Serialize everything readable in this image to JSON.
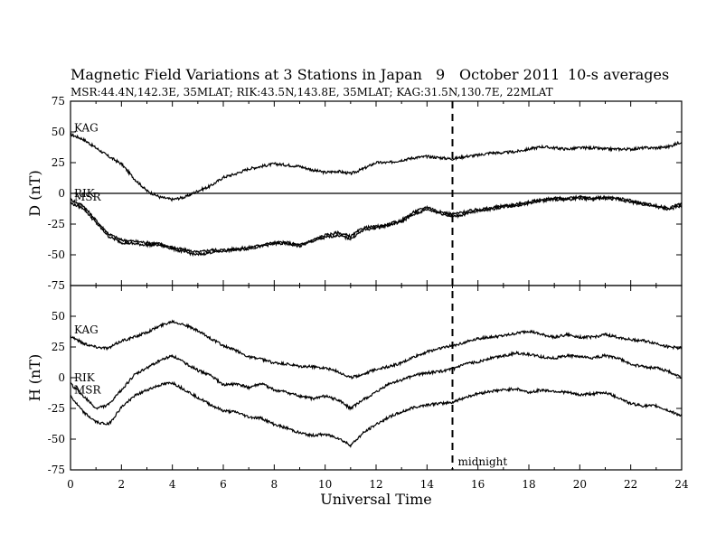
{
  "header": {
    "title": "Magnetic Field Variations at 3 Stations in Japan",
    "date_day": "9",
    "date_month_year": "October 2011",
    "averaging": "10-s averages",
    "stations_line": "MSR:44.4N,142.3E, 35MLAT;  RIK:43.5N,143.8E, 35MLAT;  KAG:31.5N,130.7E, 22MLAT"
  },
  "chart_data": [
    {
      "type": "line",
      "panel": "top",
      "ylabel": "D (nT)",
      "ylim": [
        -75,
        75
      ],
      "yticks": [
        75,
        50,
        25,
        0,
        -25,
        -50,
        -75
      ],
      "xlim": [
        0,
        24
      ],
      "zero_line": true,
      "series": [
        {
          "name": "KAG",
          "x": [
            0,
            0.5,
            1,
            1.5,
            2,
            2.5,
            3,
            3.5,
            4,
            4.5,
            5,
            5.5,
            6,
            6.5,
            7,
            7.5,
            8,
            8.5,
            9,
            9.5,
            10,
            10.5,
            11,
            11.5,
            12,
            12.5,
            13,
            13.5,
            14,
            14.5,
            15,
            15.5,
            16,
            16.5,
            17,
            17.5,
            18,
            18.5,
            19,
            19.5,
            20,
            20.5,
            21,
            21.5,
            22,
            22.5,
            23,
            23.5,
            24
          ],
          "y": [
            48,
            44,
            37,
            30,
            24,
            12,
            2,
            -3,
            -5,
            -3,
            2,
            6,
            13,
            16,
            20,
            22,
            24,
            23,
            22,
            19,
            17,
            18,
            16,
            20,
            25,
            25,
            27,
            29,
            30,
            29,
            28,
            30,
            31,
            33,
            33,
            34,
            36,
            38,
            37,
            36,
            37,
            37,
            36,
            36,
            36,
            37,
            37,
            38,
            42
          ]
        },
        {
          "name": "RIK",
          "x": [
            0,
            0.5,
            1,
            1.5,
            2,
            2.5,
            3,
            3.5,
            4,
            4.5,
            5,
            5.5,
            6,
            6.5,
            7,
            7.5,
            8,
            8.5,
            9,
            9.5,
            10,
            10.5,
            11,
            11.5,
            12,
            12.5,
            13,
            13.5,
            14,
            14.5,
            15,
            15.5,
            16,
            16.5,
            17,
            17.5,
            18,
            18.5,
            19,
            19.5,
            20,
            20.5,
            21,
            21.5,
            22,
            22.5,
            23,
            23.5,
            24
          ],
          "y": [
            -5,
            -10,
            -22,
            -33,
            -38,
            -39,
            -40,
            -41,
            -44,
            -46,
            -48,
            -46,
            -46,
            -45,
            -44,
            -42,
            -40,
            -40,
            -42,
            -38,
            -34,
            -32,
            -35,
            -28,
            -27,
            -25,
            -22,
            -15,
            -11,
            -15,
            -17,
            -15,
            -13,
            -12,
            -10,
            -9,
            -7,
            -5,
            -4,
            -4,
            -3,
            -4,
            -3,
            -4,
            -6,
            -8,
            -10,
            -12,
            -8
          ]
        },
        {
          "name": "MSR",
          "x": [
            0,
            0.5,
            1,
            1.5,
            2,
            2.5,
            3,
            3.5,
            4,
            4.5,
            5,
            5.5,
            6,
            6.5,
            7,
            7.5,
            8,
            8.5,
            9,
            9.5,
            10,
            10.5,
            11,
            11.5,
            12,
            12.5,
            13,
            13.5,
            14,
            14.5,
            15,
            15.5,
            16,
            16.5,
            17,
            17.5,
            18,
            18.5,
            19,
            19.5,
            20,
            20.5,
            21,
            21.5,
            22,
            22.5,
            23,
            23.5,
            24
          ],
          "y": [
            -8,
            -12,
            -24,
            -35,
            -40,
            -41,
            -42,
            -42,
            -45,
            -48,
            -50,
            -48,
            -47,
            -46,
            -45,
            -43,
            -41,
            -41,
            -43,
            -39,
            -36,
            -34,
            -37,
            -30,
            -28,
            -26,
            -23,
            -17,
            -13,
            -16,
            -19,
            -17,
            -14,
            -13,
            -11,
            -10,
            -8,
            -6,
            -5,
            -5,
            -4,
            -5,
            -4,
            -5,
            -7,
            -9,
            -11,
            -13,
            -10
          ]
        }
      ]
    },
    {
      "type": "line",
      "panel": "bottom",
      "ylabel": "H (nT)",
      "ylim": [
        -75,
        75
      ],
      "yticks": [
        50,
        25,
        0,
        -25,
        -50,
        -75
      ],
      "xlim": [
        0,
        24
      ],
      "xticks": [
        0,
        2,
        4,
        6,
        8,
        10,
        12,
        14,
        16,
        18,
        20,
        22,
        24
      ],
      "xlabel": "Universal Time",
      "vline": {
        "x": 15,
        "label": "midnight"
      },
      "series": [
        {
          "name": "KAG",
          "x": [
            0,
            0.5,
            1,
            1.5,
            2,
            2.5,
            3,
            3.5,
            4,
            4.5,
            5,
            5.5,
            6,
            6.5,
            7,
            7.5,
            8,
            8.5,
            9,
            9.5,
            10,
            10.5,
            11,
            11.5,
            12,
            12.5,
            13,
            13.5,
            14,
            14.5,
            15,
            15.5,
            16,
            16.5,
            17,
            17.5,
            18,
            18.5,
            19,
            19.5,
            20,
            20.5,
            21,
            21.5,
            22,
            22.5,
            23,
            23.5,
            24
          ],
          "y": [
            34,
            28,
            25,
            24,
            30,
            33,
            37,
            42,
            46,
            43,
            38,
            32,
            26,
            22,
            17,
            15,
            12,
            11,
            9,
            9,
            8,
            5,
            0,
            3,
            7,
            9,
            12,
            17,
            21,
            24,
            26,
            29,
            32,
            33,
            34,
            36,
            38,
            35,
            33,
            35,
            33,
            33,
            35,
            33,
            31,
            30,
            28,
            25,
            24
          ]
        },
        {
          "name": "RIK",
          "x": [
            0,
            0.5,
            1,
            1.5,
            2,
            2.5,
            3,
            3.5,
            4,
            4.5,
            5,
            5.5,
            6,
            6.5,
            7,
            7.5,
            8,
            8.5,
            9,
            9.5,
            10,
            10.5,
            11,
            11.5,
            12,
            12.5,
            13,
            13.5,
            14,
            14.5,
            15,
            15.5,
            16,
            16.5,
            17,
            17.5,
            18,
            18.5,
            19,
            19.5,
            20,
            20.5,
            21,
            21.5,
            22,
            22.5,
            23,
            23.5,
            24
          ],
          "y": [
            -5,
            -15,
            -25,
            -22,
            -10,
            2,
            8,
            14,
            18,
            12,
            6,
            2,
            -6,
            -5,
            -8,
            -5,
            -10,
            -12,
            -15,
            -17,
            -15,
            -18,
            -25,
            -18,
            -12,
            -5,
            -2,
            2,
            4,
            5,
            7,
            11,
            13,
            16,
            18,
            20,
            19,
            17,
            16,
            18,
            17,
            16,
            18,
            16,
            11,
            9,
            8,
            5,
            0
          ]
        },
        {
          "name": "MSR",
          "x": [
            0,
            0.5,
            1,
            1.5,
            2,
            2.5,
            3,
            3.5,
            4,
            4.5,
            5,
            5.5,
            6,
            6.5,
            7,
            7.5,
            8,
            8.5,
            9,
            9.5,
            10,
            10.5,
            11,
            11.5,
            12,
            12.5,
            13,
            13.5,
            14,
            14.5,
            15,
            15.5,
            16,
            16.5,
            17,
            17.5,
            18,
            18.5,
            19,
            19.5,
            20,
            20.5,
            21,
            21.5,
            22,
            22.5,
            23,
            23.5,
            24
          ],
          "y": [
            -15,
            -28,
            -36,
            -38,
            -24,
            -15,
            -10,
            -6,
            -4,
            -10,
            -16,
            -22,
            -27,
            -28,
            -32,
            -33,
            -38,
            -41,
            -45,
            -47,
            -46,
            -49,
            -55,
            -45,
            -38,
            -32,
            -28,
            -24,
            -22,
            -21,
            -20,
            -16,
            -13,
            -11,
            -10,
            -9,
            -12,
            -10,
            -11,
            -12,
            -14,
            -13,
            -12,
            -16,
            -21,
            -23,
            -23,
            -27,
            -31
          ]
        }
      ]
    }
  ]
}
